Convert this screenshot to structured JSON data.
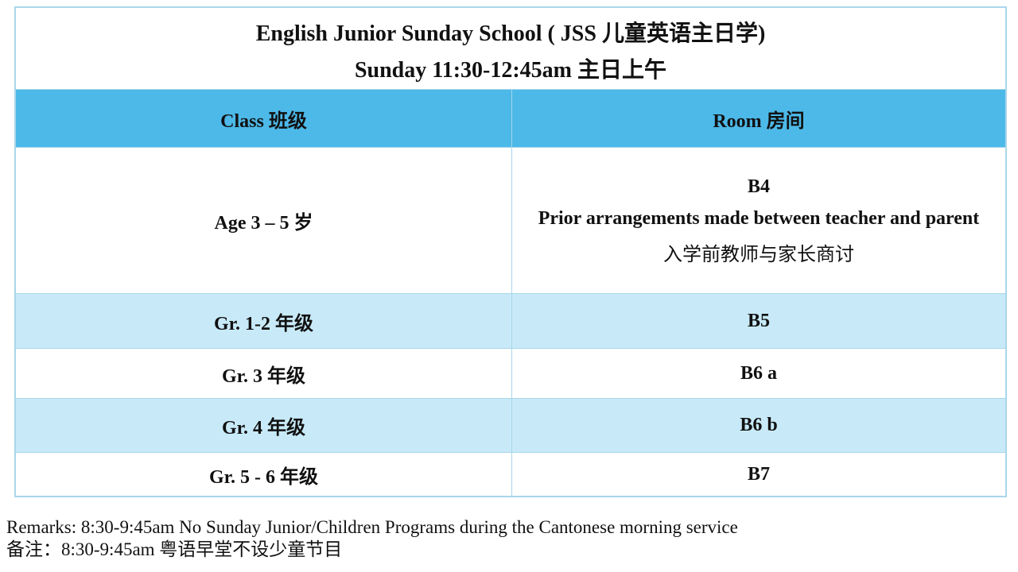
{
  "title": {
    "line1": "English Junior Sunday School ( JSS 儿童英语主日学)",
    "line2": "Sunday 11:30-12:45am 主日上午"
  },
  "table": {
    "headers": [
      "Class 班级",
      "Room 房间"
    ],
    "rows": [
      {
        "class": "Age 3 – 5 岁",
        "room": "B4",
        "note_en": "Prior arrangements made between teacher and parent",
        "note_cn": "入学前教师与家长商讨"
      },
      {
        "class": "Gr. 1-2 年级",
        "room": "B5"
      },
      {
        "class": "Gr. 3 年级",
        "room": "B6 a"
      },
      {
        "class": "Gr. 4 年级",
        "room": "B6 b"
      },
      {
        "class": "Gr. 5 - 6 年级",
        "room": "B7"
      }
    ]
  },
  "remarks": {
    "en": "Remarks: 8:30-9:45am No Sunday Junior/Children Programs during the Cantonese morning service",
    "cn": "备注：8:30-9:45am 粤语早堂不设少童节目"
  },
  "colors": {
    "header": "#4cb9e9",
    "alt_row": "#c8eaf8",
    "border": "#a9d6ea"
  }
}
